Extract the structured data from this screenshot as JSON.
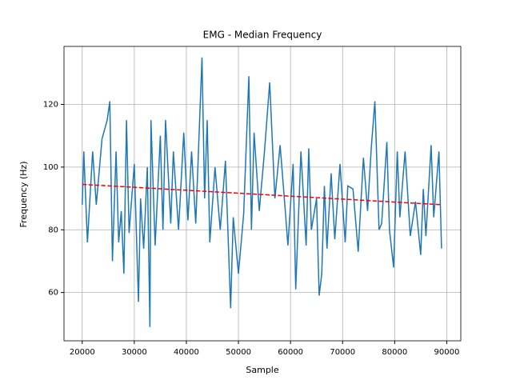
{
  "chart_data": {
    "type": "line",
    "title": "EMG - Median Frequency",
    "xlabel": "Sample",
    "ylabel": "Frequency (Hz)",
    "xlim": [
      16500,
      92700
    ],
    "ylim": [
      44.6,
      138.5
    ],
    "xticks": [
      20000,
      30000,
      40000,
      50000,
      60000,
      70000,
      80000,
      90000
    ],
    "yticks": [
      60,
      80,
      100,
      120
    ],
    "grid": true,
    "series": [
      {
        "color": "#1f77b4",
        "linestyle": "solid",
        "x": [
          20000,
          20300,
          21000,
          22000,
          22700,
          23800,
          24800,
          25300,
          25800,
          26500,
          27000,
          27500,
          28000,
          28500,
          29000,
          30000,
          30800,
          31200,
          31800,
          32500,
          33000,
          33200,
          34000,
          35000,
          35500,
          36000,
          37000,
          37500,
          38500,
          39500,
          40300,
          41000,
          41800,
          43000,
          43500,
          44000,
          44500,
          45500,
          46500,
          47500,
          48500,
          49000,
          50000,
          51000,
          52000,
          52500,
          53000,
          54000,
          55000,
          56000,
          57000,
          58000,
          59000,
          59500,
          60500,
          61000,
          62000,
          63000,
          63500,
          64000,
          65000,
          65500,
          66000,
          66500,
          67000,
          67800,
          68500,
          69500,
          70500,
          71000,
          72000,
          73000,
          74000,
          74800,
          75500,
          76200,
          77000,
          77500,
          78500,
          79000,
          79800,
          80500,
          81000,
          82000,
          83000,
          84000,
          85000,
          85500,
          86000,
          87000,
          87500,
          88500,
          89000
        ],
        "values": [
          88,
          105,
          76,
          105,
          88,
          109,
          115,
          121,
          70,
          105,
          76,
          86,
          66,
          115,
          79,
          101,
          57,
          90,
          74,
          100,
          49,
          115,
          75,
          110,
          80,
          115,
          82,
          105,
          80,
          111,
          83,
          105,
          82,
          135,
          90,
          115,
          76,
          100,
          80,
          102,
          55,
          84,
          66,
          85,
          129,
          80,
          111,
          86,
          105,
          127,
          90,
          107,
          86,
          75,
          101,
          61,
          105,
          75,
          106,
          80,
          90,
          59,
          66,
          94,
          74,
          98,
          77,
          101,
          76,
          94,
          93,
          73,
          103,
          86,
          106,
          121,
          80,
          82,
          108,
          80,
          68,
          105,
          84,
          105,
          78,
          89,
          72,
          93,
          78,
          107,
          84,
          105,
          74
        ]
      },
      {
        "color": "#ff0000",
        "linestyle": "dashed",
        "x": [
          20000,
          89000
        ],
        "values": [
          94.5,
          88
        ]
      }
    ]
  }
}
